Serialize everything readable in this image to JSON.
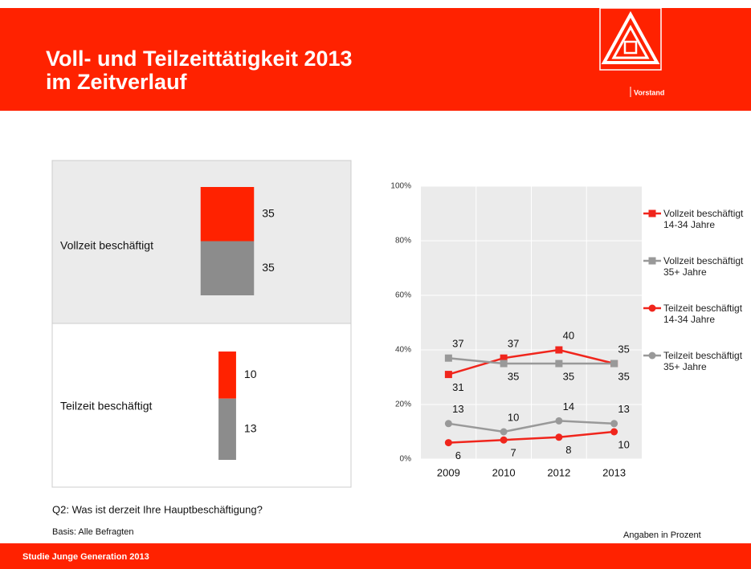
{
  "header": {
    "title": [
      "Voll- und Teilzeittätigkeit 2013",
      "im Zeitverlauf"
    ],
    "logo_text": "Vorstand"
  },
  "chart_data": [
    {
      "type": "mosaic-bar",
      "categories": [
        "Vollzeit beschäftigt",
        "Teilzeit beschäftigt"
      ],
      "series": [
        {
          "color": "#ff2200",
          "values": [
            35,
            10
          ]
        },
        {
          "color": "#8c8c8c",
          "values": [
            35,
            13
          ]
        }
      ]
    },
    {
      "type": "line",
      "categories": [
        "2009",
        "2010",
        "2012",
        "2013"
      ],
      "series": [
        {
          "name": "Vollzeit beschäftigt 14-34 Jahre",
          "color": "#f0251c",
          "marker": "square",
          "values": [
            31,
            37,
            40,
            35
          ]
        },
        {
          "name": "Vollzeit beschäftigt 35+ Jahre",
          "color": "#999999",
          "marker": "square",
          "values": [
            37,
            35,
            35,
            35
          ]
        },
        {
          "name": "Teilzeit beschäftigt 14-34 Jahre",
          "color": "#f0251c",
          "marker": "circle",
          "values": [
            6,
            7,
            8,
            10
          ]
        },
        {
          "name": "Teilzeit beschäftigt 35+ Jahre",
          "color": "#999999",
          "marker": "circle",
          "values": [
            13,
            10,
            14,
            13
          ]
        }
      ],
      "ylim": [
        0,
        100
      ],
      "yticks": [
        {
          "value": 0,
          "label": "0%"
        },
        {
          "value": 20,
          "label": "20%"
        },
        {
          "value": 40,
          "label": "40%"
        },
        {
          "value": 60,
          "label": "60%"
        },
        {
          "value": 80,
          "label": "80%"
        },
        {
          "value": 100,
          "label": "100%"
        }
      ],
      "grid": true,
      "legend": "right"
    }
  ],
  "footer": {
    "question": "Q2: Was ist derzeit Ihre Hauptbeschäftigung?",
    "basis": "Basis: Alle Befragten",
    "unit_note": "Angaben in Prozent",
    "study": "Studie Junge Generation 2013"
  }
}
